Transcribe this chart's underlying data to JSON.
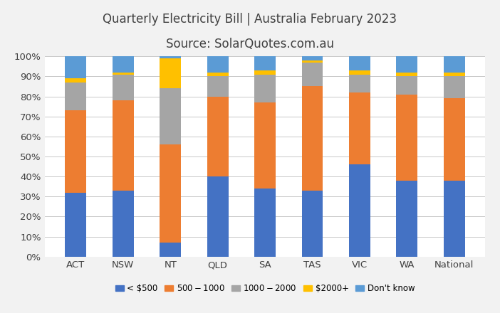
{
  "title_line1": "Quarterly Electricity Bill | Australia February 2023",
  "title_line2": "Source: SolarQuotes.com.au",
  "categories": [
    "ACT",
    "NSW",
    "NT",
    "QLD",
    "SA",
    "TAS",
    "VIC",
    "WA",
    "National"
  ],
  "series": {
    "< $500": [
      32,
      33,
      7,
      40,
      34,
      33,
      46,
      38,
      38
    ],
    "$500 - $1000": [
      41,
      45,
      49,
      40,
      43,
      52,
      36,
      43,
      41
    ],
    "$1000- $2000": [
      14,
      13,
      28,
      10,
      14,
      12,
      9,
      9,
      11
    ],
    "$2000+": [
      2,
      1,
      15,
      2,
      2,
      1,
      2,
      2,
      2
    ],
    "Don't know": [
      11,
      8,
      1,
      8,
      7,
      2,
      7,
      8,
      8
    ]
  },
  "colors": {
    "< $500": "#4472c4",
    "$500 - $1000": "#ed7d31",
    "$1000- $2000": "#a5a5a5",
    "$2000+": "#ffc000",
    "Don't know": "#5b9bd5"
  },
  "ylim": [
    0,
    100
  ],
  "yticks": [
    0,
    10,
    20,
    30,
    40,
    50,
    60,
    70,
    80,
    90,
    100
  ],
  "ytick_labels": [
    "0%",
    "10%",
    "20%",
    "30%",
    "40%",
    "50%",
    "60%",
    "70%",
    "80%",
    "90%",
    "100%"
  ],
  "legend_order": [
    "< $500",
    "$500 - $1000",
    "$1000- $2000",
    "$2000+",
    "Don't know"
  ],
  "background_color": "#f2f2f2",
  "plot_background": "#ffffff",
  "title_fontsize": 12,
  "bar_width": 0.45
}
